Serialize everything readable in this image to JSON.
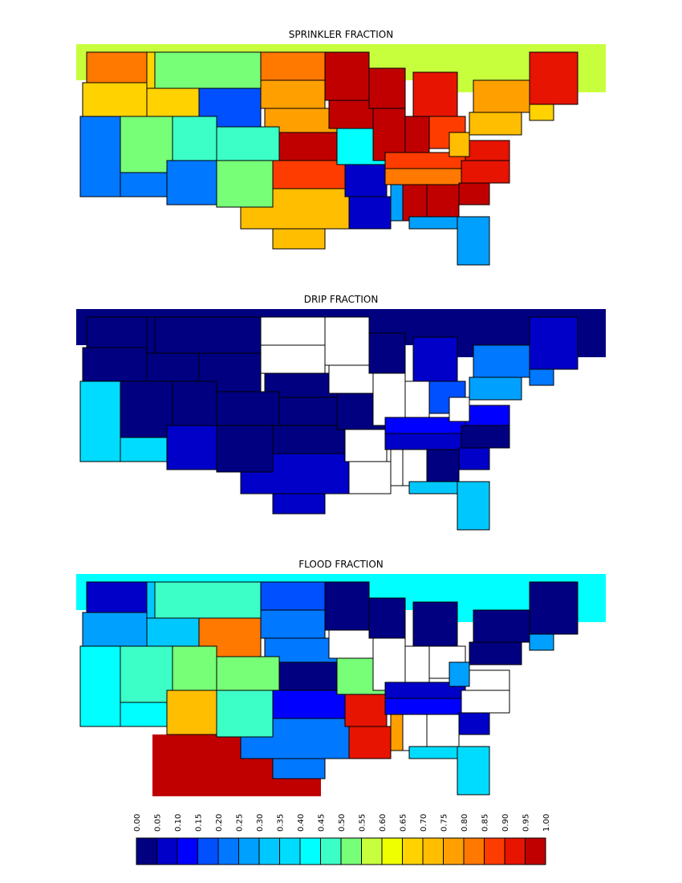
{
  "chart_data": {
    "type": "heatmap",
    "colorbar": {
      "ticks": [
        "0.00",
        "0.05",
        "0.10",
        "0.15",
        "0.20",
        "0.25",
        "0.30",
        "0.35",
        "0.40",
        "0.45",
        "0.50",
        "0.55",
        "0.60",
        "0.65",
        "0.70",
        "0.75",
        "0.80",
        "0.85",
        "0.90",
        "0.95",
        "1.00"
      ],
      "colors": [
        "#000080",
        "#0000c8",
        "#0000ff",
        "#0050ff",
        "#0078ff",
        "#00a0ff",
        "#00c8ff",
        "#00dcff",
        "#00ffff",
        "#3cffc8",
        "#78ff78",
        "#c8ff3c",
        "#f0ff00",
        "#ffd200",
        "#ffbe00",
        "#ffa000",
        "#ff7800",
        "#ff3c00",
        "#e61400",
        "#c00000"
      ],
      "range": [
        0,
        1
      ]
    },
    "panels": [
      {
        "title": "SPRINKLER FRACTION",
        "values": {
          "CAN": 0.57,
          "MEX": null,
          "WA": 0.82,
          "OR": 0.67,
          "ID": 0.67,
          "MT": 0.52,
          "WY": 0.17,
          "ND": 0.82,
          "SD": 0.77,
          "NE": 0.77,
          "KS": 0.97,
          "OK": 0.87,
          "TX": 0.72,
          "CA": 0.22,
          "NV": 0.52,
          "UT": 0.47,
          "CO": 0.47,
          "AZ": 0.22,
          "NM": 0.52,
          "MN": 0.97,
          "IA": 0.99,
          "MO": 0.42,
          "AR": 0.07,
          "LA": 0.07,
          "WI": 0.97,
          "IL": 0.99,
          "IN": 0.99,
          "MI": 0.92,
          "OH": 0.87,
          "KY": 0.87,
          "TN": 0.82,
          "MS": 0.27,
          "AL": 0.97,
          "GA": 0.97,
          "FL": 0.27,
          "SC": 0.97,
          "NC": 0.92,
          "VA": 0.92,
          "WV": 0.72,
          "PA": 0.72,
          "NY": 0.77,
          "NE_US": 0.92,
          "SNE": 0.67
        }
      },
      {
        "title": "DRIP FRACTION",
        "values": {
          "CAN": 0.02,
          "MEX": null,
          "WA": 0.02,
          "OR": 0.02,
          "ID": 0.02,
          "MT": 0.02,
          "WY": 0.02,
          "ND": null,
          "SD": null,
          "NE": 0.02,
          "KS": 0.02,
          "OK": 0.02,
          "TX": 0.07,
          "CA": 0.37,
          "NV": 0.02,
          "UT": 0.02,
          "CO": 0.02,
          "AZ": 0.07,
          "NM": 0.02,
          "MN": null,
          "IA": null,
          "MO": 0.02,
          "AR": null,
          "LA": null,
          "WI": 0.02,
          "IL": null,
          "IN": null,
          "MI": 0.07,
          "OH": 0.17,
          "KY": 0.12,
          "TN": 0.07,
          "MS": null,
          "AL": null,
          "GA": 0.02,
          "FL": 0.32,
          "SC": 0.07,
          "NC": 0.02,
          "VA": 0.12,
          "WV": null,
          "PA": 0.27,
          "NY": 0.22,
          "NE_US": 0.07,
          "SNE": 0.22
        }
      },
      {
        "title": "FLOOD FRACTION",
        "values": {
          "CAN": 0.42,
          "MEX": 0.97,
          "WA": 0.07,
          "OR": 0.27,
          "ID": 0.32,
          "MT": 0.47,
          "WY": 0.82,
          "ND": 0.17,
          "SD": 0.22,
          "NE": 0.22,
          "KS": 0.02,
          "OK": 0.12,
          "TX": 0.22,
          "CA": 0.42,
          "NV": 0.47,
          "UT": 0.52,
          "CO": 0.52,
          "AZ": 0.72,
          "NM": 0.47,
          "MN": 0.02,
          "IA": null,
          "MO": 0.52,
          "AR": 0.92,
          "LA": 0.92,
          "WI": 0.02,
          "IL": null,
          "IN": null,
          "MI": 0.02,
          "OH": null,
          "KY": 0.07,
          "TN": 0.12,
          "MS": 0.77,
          "AL": null,
          "GA": null,
          "FL": 0.37,
          "SC": 0.07,
          "NC": null,
          "VA": null,
          "WV": 0.27,
          "PA": 0.02,
          "NY": 0.02,
          "NE_US": 0.02,
          "SNE": 0.27
        }
      }
    ]
  }
}
